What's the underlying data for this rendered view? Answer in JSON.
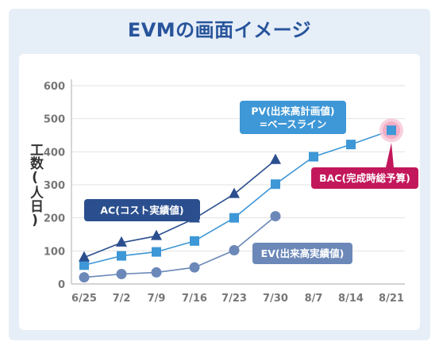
{
  "title": "EVMの画面イメージ",
  "chart_data": {
    "type": "line",
    "ylabel": "工数(人日)",
    "xlabel": "",
    "categories": [
      "6/25",
      "7/2",
      "7/9",
      "7/16",
      "7/23",
      "7/30",
      "8/7",
      "8/14",
      "8/21"
    ],
    "yticks": [
      0,
      100,
      200,
      300,
      400,
      500,
      600
    ],
    "ylim": [
      0,
      620
    ],
    "grid": true,
    "series": [
      {
        "key": "ac",
        "color": "#2b4f8e",
        "marker": "triangle",
        "values": [
          80,
          125,
          145,
          198,
          272,
          375,
          null,
          null,
          null
        ]
      },
      {
        "key": "pv",
        "color": "#3e97d6",
        "marker": "square",
        "values": [
          57,
          85,
          97,
          130,
          200,
          302,
          385,
          422,
          465
        ]
      },
      {
        "key": "ev",
        "color": "#6b88b8",
        "marker": "circle",
        "values": [
          20,
          30,
          35,
          50,
          102,
          205,
          null,
          null,
          null
        ]
      }
    ],
    "annotations": {
      "ac": {
        "lines": [
          "AC(コスト実績値)"
        ],
        "color": "#2b4f8e"
      },
      "pv": {
        "lines": [
          "PV(出来高計画値)",
          "=ベースライン"
        ],
        "color": "#3e97d6"
      },
      "ev": {
        "lines": [
          "EV(出来高実績値)"
        ],
        "color": "#6b88b8"
      },
      "bac": {
        "lines": [
          "BAC(完成時総予算)"
        ],
        "color": "#c2185b"
      }
    }
  }
}
